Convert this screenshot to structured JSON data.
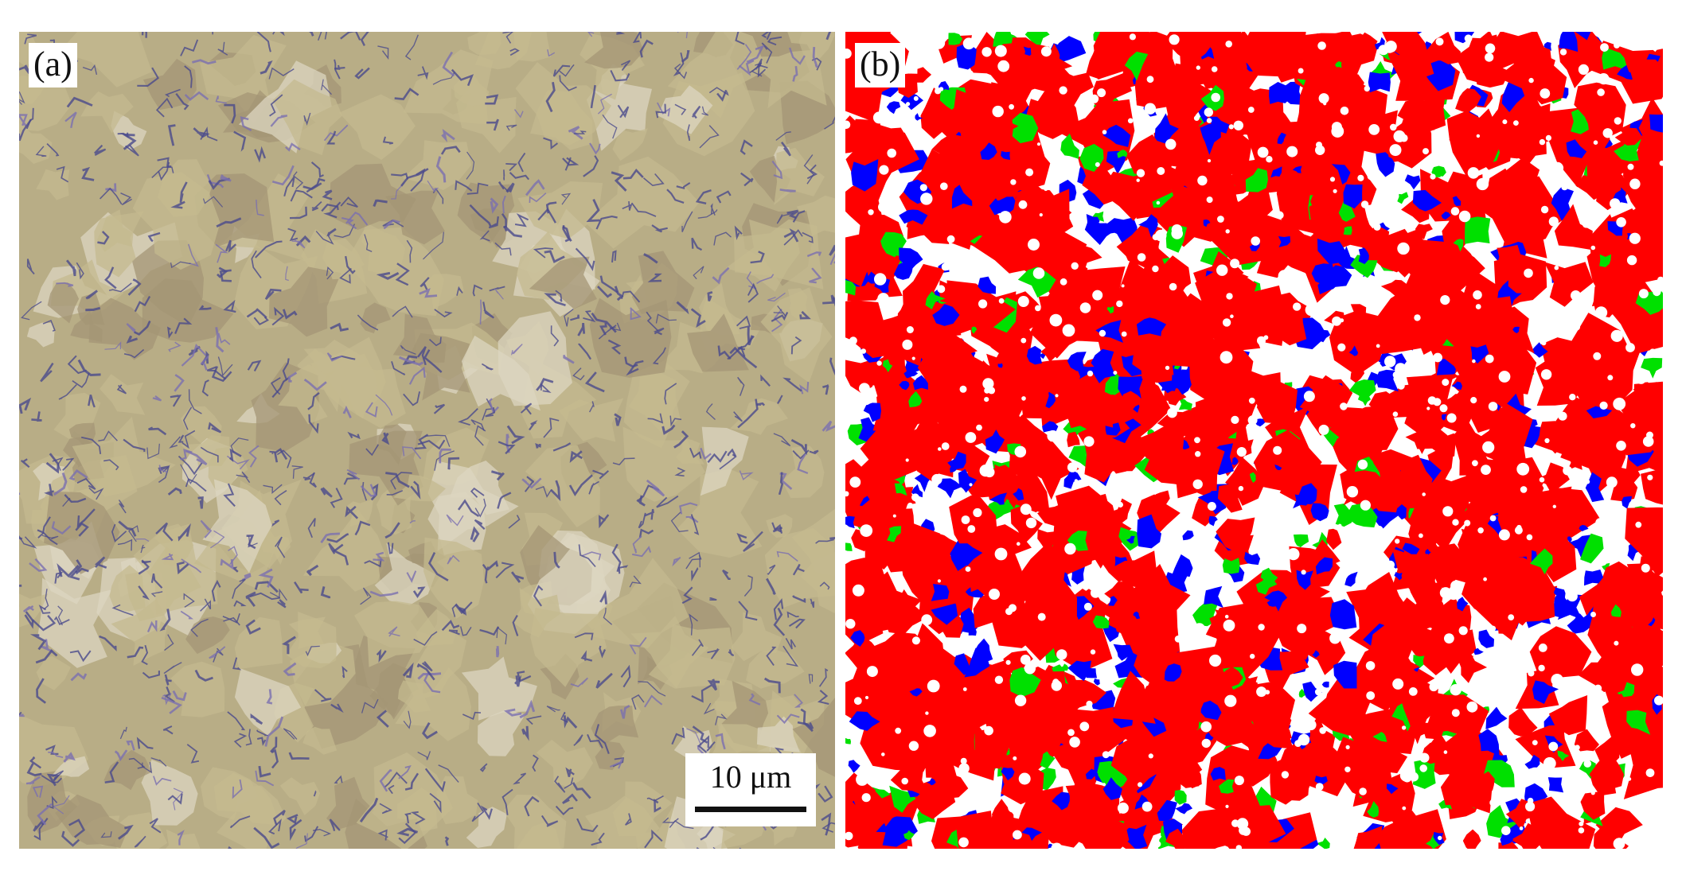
{
  "panels": [
    {
      "label": "(a)",
      "kind": "optical-micrograph",
      "base_color": "#b8ad86"
    },
    {
      "label": "(b)",
      "kind": "phase-map",
      "phase_colors": [
        "#ff0000",
        "#0000ff",
        "#00e000",
        "#ffffff"
      ]
    }
  ],
  "scale_bar": {
    "text": "10 μm"
  },
  "colors": {
    "micrograph_tan": "#c4b98f",
    "micrograph_light": "#dcd6c0",
    "micrograph_boundary": "#4a4a8c",
    "phase_red": "#ff0000",
    "phase_blue": "#0000ff",
    "phase_green": "#00e000"
  }
}
